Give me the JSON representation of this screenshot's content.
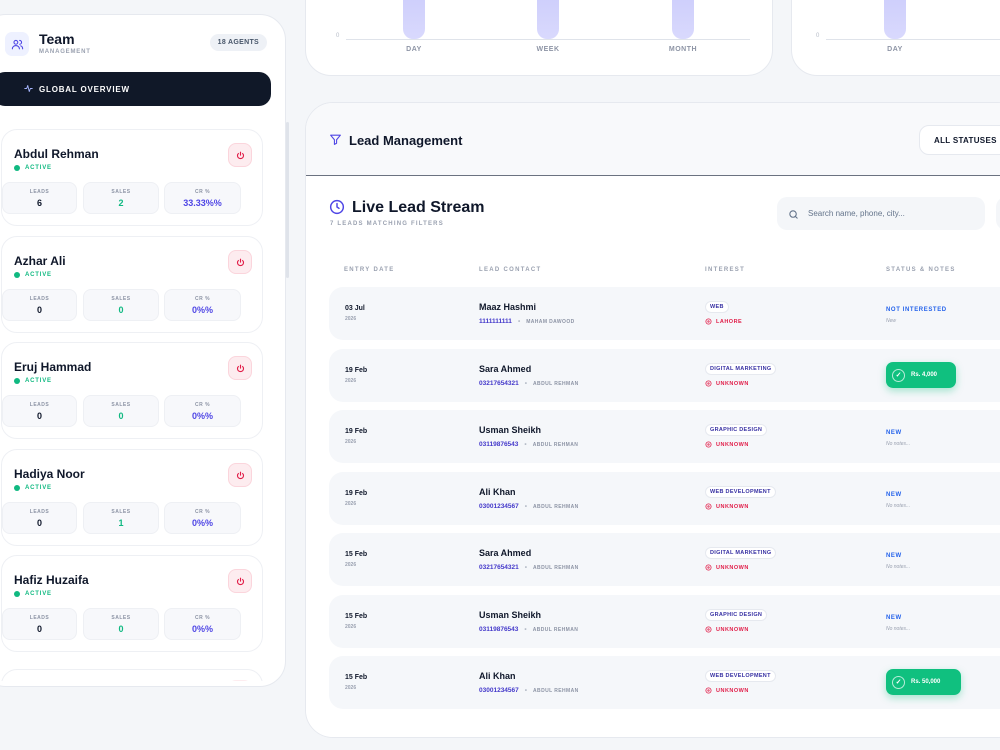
{
  "charts": {
    "left": {
      "zero_label": "0",
      "ticks": [
        "DAY",
        "WEEK",
        "MONTH"
      ]
    },
    "right": {
      "zero_label": "0",
      "ticks": [
        "DAY"
      ]
    }
  },
  "team": {
    "title": "Team",
    "subtitle": "MANAGEMENT",
    "agents_badge": "18 AGENTS",
    "overview_label": "GLOBAL OVERVIEW",
    "stat_labels": {
      "leads": "LEADS",
      "sales": "SALES",
      "cr": "CR %"
    },
    "agents": [
      {
        "name": "Abdul Rehman",
        "status": "ACTIVE",
        "leads": "6",
        "sales": "2",
        "cr": "33.33%%"
      },
      {
        "name": "Azhar Ali",
        "status": "ACTIVE",
        "leads": "0",
        "sales": "0",
        "cr": "0%%"
      },
      {
        "name": "Eruj Hammad",
        "status": "ACTIVE",
        "leads": "0",
        "sales": "0",
        "cr": "0%%"
      },
      {
        "name": "Hadiya Noor",
        "status": "ACTIVE",
        "leads": "0",
        "sales": "1",
        "cr": "0%%"
      },
      {
        "name": "Hafiz Huzaifa",
        "status": "ACTIVE",
        "leads": "0",
        "sales": "0",
        "cr": "0%%"
      }
    ]
  },
  "lead_management": {
    "title": "Lead Management",
    "status_filter": "ALL STATUSES"
  },
  "stream": {
    "title": "Live Lead Stream",
    "subtitle": "7 LEADS MATCHING FILTERS",
    "search_placeholder": "Search name, phone, city...",
    "columns": [
      "ENTRY DATE",
      "LEAD CONTACT",
      "INTEREST",
      "STATUS & NOTES"
    ],
    "rows": [
      {
        "date": "03 Jul",
        "year": "2026",
        "name": "Maaz Hashmi",
        "phone": "1111111111",
        "agent": "MAHAM DAWOOD",
        "interest": "WEB",
        "location": "LAHORE",
        "status": "NOT INTERESTED",
        "note": "New"
      },
      {
        "date": "19 Feb",
        "year": "2026",
        "name": "Sara Ahmed",
        "phone": "03217654321",
        "agent": "ABDUL REHMAN",
        "interest": "DIGITAL MARKETING",
        "location": "UNKNOWN",
        "paid": "Rs. 4,000"
      },
      {
        "date": "19 Feb",
        "year": "2026",
        "name": "Usman Sheikh",
        "phone": "03119876543",
        "agent": "ABDUL REHMAN",
        "interest": "GRAPHIC DESIGN",
        "location": "UNKNOWN",
        "status": "NEW",
        "note": "No notes..."
      },
      {
        "date": "19 Feb",
        "year": "2026",
        "name": "Ali Khan",
        "phone": "03001234567",
        "agent": "ABDUL REHMAN",
        "interest": "WEB DEVELOPMENT",
        "location": "UNKNOWN",
        "status": "NEW",
        "note": "No notes..."
      },
      {
        "date": "15 Feb",
        "year": "2026",
        "name": "Sara Ahmed",
        "phone": "03217654321",
        "agent": "ABDUL REHMAN",
        "interest": "DIGITAL MARKETING",
        "location": "UNKNOWN",
        "status": "NEW",
        "note": "No notes..."
      },
      {
        "date": "15 Feb",
        "year": "2026",
        "name": "Usman Sheikh",
        "phone": "03119876543",
        "agent": "ABDUL REHMAN",
        "interest": "GRAPHIC DESIGN",
        "location": "UNKNOWN",
        "status": "NEW",
        "note": "No notes..."
      },
      {
        "date": "15 Feb",
        "year": "2026",
        "name": "Ali Khan",
        "phone": "03001234567",
        "agent": "ABDUL REHMAN",
        "interest": "WEB DEVELOPMENT",
        "location": "UNKNOWN",
        "paid": "Rs. 50,000"
      }
    ]
  },
  "colors": {
    "accent": "#4f46e5",
    "success": "#10c07f",
    "danger": "#e11d48",
    "dark": "#101828"
  },
  "icons": {
    "team": "users-icon",
    "overview": "activity-icon",
    "power": "power-icon",
    "filter": "filter-icon",
    "clock": "clock-icon",
    "search": "search-icon",
    "location": "map-pin-icon",
    "check": "check-circle-icon"
  }
}
